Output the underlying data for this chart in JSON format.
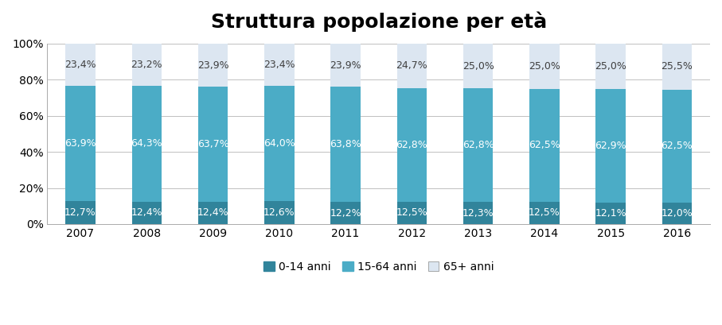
{
  "title": "Struttura popolazione per età",
  "years": [
    2007,
    2008,
    2009,
    2010,
    2011,
    2012,
    2013,
    2014,
    2015,
    2016
  ],
  "young": [
    12.7,
    12.4,
    12.4,
    12.6,
    12.2,
    12.5,
    12.3,
    12.5,
    12.1,
    12.0
  ],
  "adult": [
    63.9,
    64.3,
    63.7,
    64.0,
    63.8,
    62.8,
    62.8,
    62.5,
    62.9,
    62.5
  ],
  "elderly": [
    23.4,
    23.2,
    23.9,
    23.4,
    23.9,
    24.7,
    25.0,
    25.0,
    25.0,
    25.5
  ],
  "color_young": "#31849b",
  "color_adult": "#4bacc6",
  "color_elderly": "#dce6f1",
  "legend_labels": [
    "0-14 anni",
    "15-64 anni",
    "65+ anni"
  ],
  "bg_color": "#ffffff",
  "fig_color": "#ffffff",
  "title_fontsize": 18,
  "label_fontsize": 9,
  "label_color_young": "#ffffff",
  "label_color_adult": "#ffffff",
  "label_color_elderly": "#404040",
  "ylim": [
    0,
    100
  ],
  "yticks": [
    0,
    20,
    40,
    60,
    80,
    100
  ],
  "bar_width": 0.45,
  "grid_color": "#c0c0c0",
  "border_color": "#aaaaaa"
}
